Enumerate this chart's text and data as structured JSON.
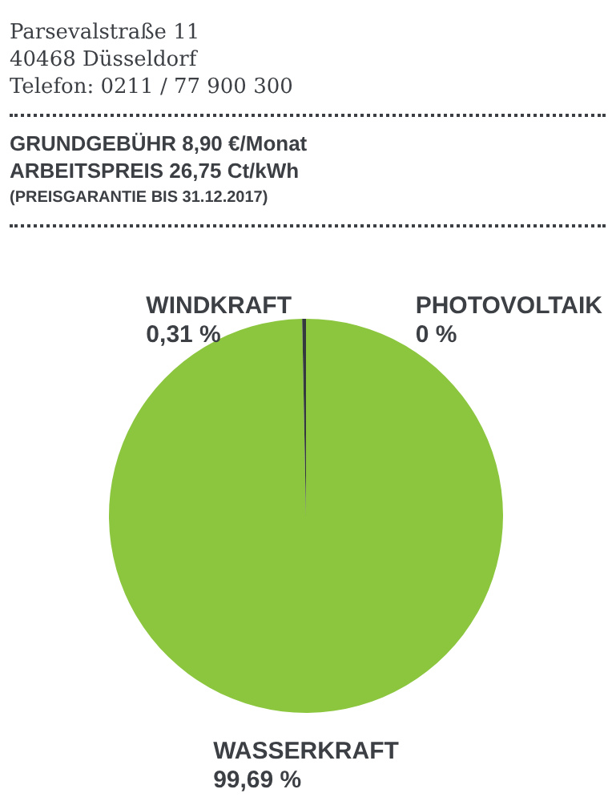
{
  "chart_data": {
    "type": "pie",
    "annotations": [
      "Parsevalstraße 11",
      "40468 Düsseldorf",
      "Telefon: 0211 / 77 900 300",
      "GRUNDGEBÜHR 8,90 €/Monat",
      "ARBEITSPREIS  26,75 Ct/kWh",
      "(PREISGARANTIE BIS 31.12.2017)"
    ],
    "categories": [
      "PHOTOVOLTAIK",
      "WASSERKRAFT",
      "WINDKRAFT"
    ],
    "values": [
      0,
      99.69,
      0.31
    ],
    "colors": [
      "#f2c230",
      "#8cc63f",
      "#33393d"
    ],
    "value_labels": [
      "0 %",
      "99,69 %",
      "0,31 %"
    ],
    "legend": false
  }
}
